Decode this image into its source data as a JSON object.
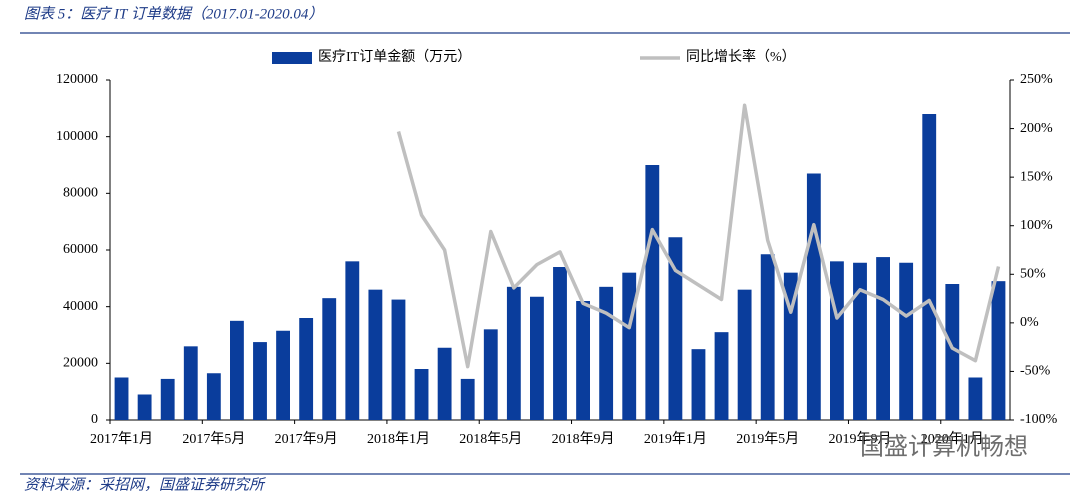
{
  "title": "图表 5：医疗 IT 订单数据（2017.01-2020.04）",
  "source": "资料来源：采招网，国盛证券研究所",
  "watermark": "国盛计算机畅想",
  "chart_data": {
    "type": "bar_line",
    "categories": [
      "2017年1月",
      null,
      null,
      null,
      "2017年5月",
      null,
      null,
      null,
      "2017年9月",
      null,
      null,
      null,
      "2018年1月",
      null,
      null,
      null,
      "2018年5月",
      null,
      null,
      null,
      "2018年9月",
      null,
      null,
      null,
      "2019年1月",
      null,
      null,
      null,
      "2019年5月",
      null,
      null,
      null,
      "2019年9月",
      null,
      null,
      null,
      "2020年1月",
      null,
      null
    ],
    "series": [
      {
        "name": "医疗IT订单金额（万元）",
        "color": "#0a3d9c",
        "type": "bar",
        "values": [
          15000,
          9000,
          14500,
          26000,
          16500,
          35000,
          27500,
          31500,
          36000,
          43000,
          56000,
          46000,
          42500,
          18000,
          25500,
          14500,
          32000,
          47000,
          43500,
          54000,
          42000,
          47000,
          52000,
          90000,
          64500,
          25000,
          31000,
          46000,
          58500,
          52000,
          87000,
          56000,
          55500,
          57500,
          55500,
          108000,
          48000,
          15000,
          49000
        ]
      },
      {
        "name": "同比增长率（%）",
        "color": "#bfbfbf",
        "type": "line",
        "axis": "y2",
        "values": [
          null,
          null,
          null,
          null,
          null,
          null,
          null,
          null,
          null,
          null,
          null,
          null,
          197,
          111,
          75,
          -45,
          94,
          36,
          60,
          73,
          20,
          10,
          -5,
          96,
          54,
          39,
          24,
          224,
          85,
          11,
          101,
          5,
          34,
          24,
          7,
          23,
          -26,
          -39,
          58
        ]
      }
    ],
    "ylim": [
      0,
      120000
    ],
    "yticks": [
      0,
      20000,
      40000,
      60000,
      80000,
      100000,
      120000
    ],
    "y2lim": [
      -100,
      250
    ],
    "y2ticks": [
      {
        "value": -100,
        "label": "-100%"
      },
      {
        "value": -50,
        "label": "-50%"
      },
      {
        "value": 0,
        "label": "0%"
      },
      {
        "value": 50,
        "label": "50%"
      },
      {
        "value": 100,
        "label": "100%"
      },
      {
        "value": 150,
        "label": "150%"
      },
      {
        "value": 200,
        "label": "200%"
      },
      {
        "value": 250,
        "label": "250%"
      }
    ],
    "grid": false,
    "legend": "top"
  }
}
